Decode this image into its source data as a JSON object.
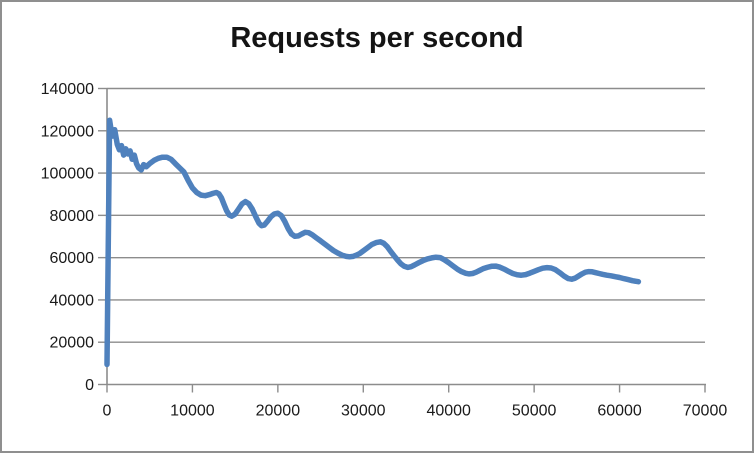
{
  "window": {
    "background": "#ffffff",
    "border_color": "#8f8f8f"
  },
  "chart_data": {
    "type": "line",
    "title": "Requests per second",
    "xlabel": "",
    "ylabel": "",
    "xlim": [
      0,
      70000
    ],
    "ylim": [
      0,
      140000
    ],
    "x_ticks": [
      0,
      10000,
      20000,
      30000,
      40000,
      50000,
      60000,
      70000
    ],
    "y_ticks": [
      0,
      20000,
      40000,
      60000,
      80000,
      100000,
      120000,
      140000
    ],
    "grid": "horizontal",
    "legend": "none",
    "gridline_color": "#8c8c8c",
    "axis_color": "#8c8c8c",
    "label_color": "#1a1a1a",
    "series": [
      {
        "name": "Requests per second",
        "color": "#4F81BD",
        "stroke_width": 5.5,
        "points": [
          [
            0,
            9500
          ],
          [
            300,
            125000
          ],
          [
            600,
            117500
          ],
          [
            900,
            120500
          ],
          [
            1200,
            113500
          ],
          [
            1450,
            111000
          ],
          [
            1700,
            113000
          ],
          [
            1950,
            108500
          ],
          [
            2200,
            111500
          ],
          [
            2450,
            109000
          ],
          [
            2700,
            110500
          ],
          [
            2950,
            106500
          ],
          [
            3200,
            108500
          ],
          [
            3450,
            104500
          ],
          [
            3700,
            102500
          ],
          [
            4000,
            101500
          ],
          [
            4300,
            104000
          ],
          [
            4600,
            103000
          ],
          [
            5000,
            104500
          ],
          [
            5500,
            106000
          ],
          [
            6000,
            107000
          ],
          [
            6500,
            107500
          ],
          [
            7000,
            107500
          ],
          [
            7500,
            106500
          ],
          [
            8000,
            104500
          ],
          [
            8500,
            102500
          ],
          [
            9000,
            100500
          ],
          [
            9500,
            96500
          ],
          [
            10000,
            93000
          ],
          [
            10500,
            90800
          ],
          [
            11000,
            89600
          ],
          [
            11500,
            89300
          ],
          [
            12000,
            89800
          ],
          [
            12400,
            90400
          ],
          [
            12800,
            90800
          ],
          [
            13100,
            90200
          ],
          [
            13400,
            88200
          ],
          [
            13700,
            85200
          ],
          [
            14000,
            82200
          ],
          [
            14300,
            80200
          ],
          [
            14600,
            79600
          ],
          [
            15000,
            80600
          ],
          [
            15400,
            83000
          ],
          [
            15800,
            85400
          ],
          [
            16200,
            86500
          ],
          [
            16600,
            85500
          ],
          [
            17000,
            83000
          ],
          [
            17400,
            79500
          ],
          [
            17800,
            76200
          ],
          [
            18100,
            75100
          ],
          [
            18400,
            75400
          ],
          [
            18800,
            77300
          ],
          [
            19200,
            79400
          ],
          [
            19600,
            80700
          ],
          [
            20000,
            81000
          ],
          [
            20400,
            79900
          ],
          [
            20800,
            77200
          ],
          [
            21200,
            73800
          ],
          [
            21600,
            71200
          ],
          [
            22000,
            70100
          ],
          [
            22400,
            70300
          ],
          [
            22800,
            71200
          ],
          [
            23200,
            72000
          ],
          [
            23600,
            71800
          ],
          [
            24000,
            70900
          ],
          [
            24500,
            69400
          ],
          [
            25000,
            67900
          ],
          [
            25500,
            66400
          ],
          [
            26000,
            64900
          ],
          [
            26500,
            63400
          ],
          [
            27000,
            62200
          ],
          [
            27500,
            61200
          ],
          [
            28000,
            60600
          ],
          [
            28400,
            60400
          ],
          [
            28800,
            60600
          ],
          [
            29200,
            61200
          ],
          [
            29600,
            62000
          ],
          [
            30000,
            63200
          ],
          [
            30500,
            64700
          ],
          [
            31000,
            66200
          ],
          [
            31500,
            67100
          ],
          [
            32000,
            67500
          ],
          [
            32400,
            66800
          ],
          [
            32800,
            65200
          ],
          [
            33200,
            63000
          ],
          [
            33600,
            60900
          ],
          [
            34000,
            58900
          ],
          [
            34400,
            57100
          ],
          [
            34800,
            55900
          ],
          [
            35200,
            55400
          ],
          [
            35600,
            55700
          ],
          [
            36000,
            56500
          ],
          [
            36500,
            57600
          ],
          [
            37000,
            58600
          ],
          [
            37500,
            59400
          ],
          [
            38000,
            59900
          ],
          [
            38500,
            60200
          ],
          [
            39000,
            60000
          ],
          [
            39500,
            59000
          ],
          [
            40000,
            57600
          ],
          [
            40500,
            56100
          ],
          [
            41000,
            54600
          ],
          [
            41500,
            53400
          ],
          [
            42000,
            52600
          ],
          [
            42400,
            52300
          ],
          [
            42800,
            52500
          ],
          [
            43200,
            53100
          ],
          [
            43600,
            53900
          ],
          [
            44000,
            54700
          ],
          [
            44500,
            55400
          ],
          [
            45000,
            55900
          ],
          [
            45500,
            56000
          ],
          [
            46000,
            55500
          ],
          [
            46500,
            54600
          ],
          [
            47000,
            53500
          ],
          [
            47500,
            52500
          ],
          [
            48000,
            51900
          ],
          [
            48500,
            51700
          ],
          [
            49000,
            52000
          ],
          [
            49500,
            52700
          ],
          [
            50000,
            53500
          ],
          [
            50500,
            54300
          ],
          [
            51000,
            55000
          ],
          [
            51500,
            55300
          ],
          [
            52000,
            55100
          ],
          [
            52500,
            54300
          ],
          [
            53000,
            52900
          ],
          [
            53500,
            51300
          ],
          [
            54000,
            50100
          ],
          [
            54400,
            49800
          ],
          [
            54800,
            50300
          ],
          [
            55200,
            51300
          ],
          [
            55600,
            52300
          ],
          [
            56000,
            53100
          ],
          [
            56400,
            53400
          ],
          [
            56800,
            53300
          ],
          [
            57200,
            52900
          ],
          [
            57600,
            52500
          ],
          [
            58000,
            52100
          ],
          [
            58500,
            51700
          ],
          [
            59000,
            51400
          ],
          [
            59500,
            51000
          ],
          [
            60000,
            50600
          ],
          [
            60500,
            50100
          ],
          [
            61000,
            49600
          ],
          [
            61500,
            49100
          ],
          [
            62200,
            48600
          ]
        ]
      }
    ]
  }
}
